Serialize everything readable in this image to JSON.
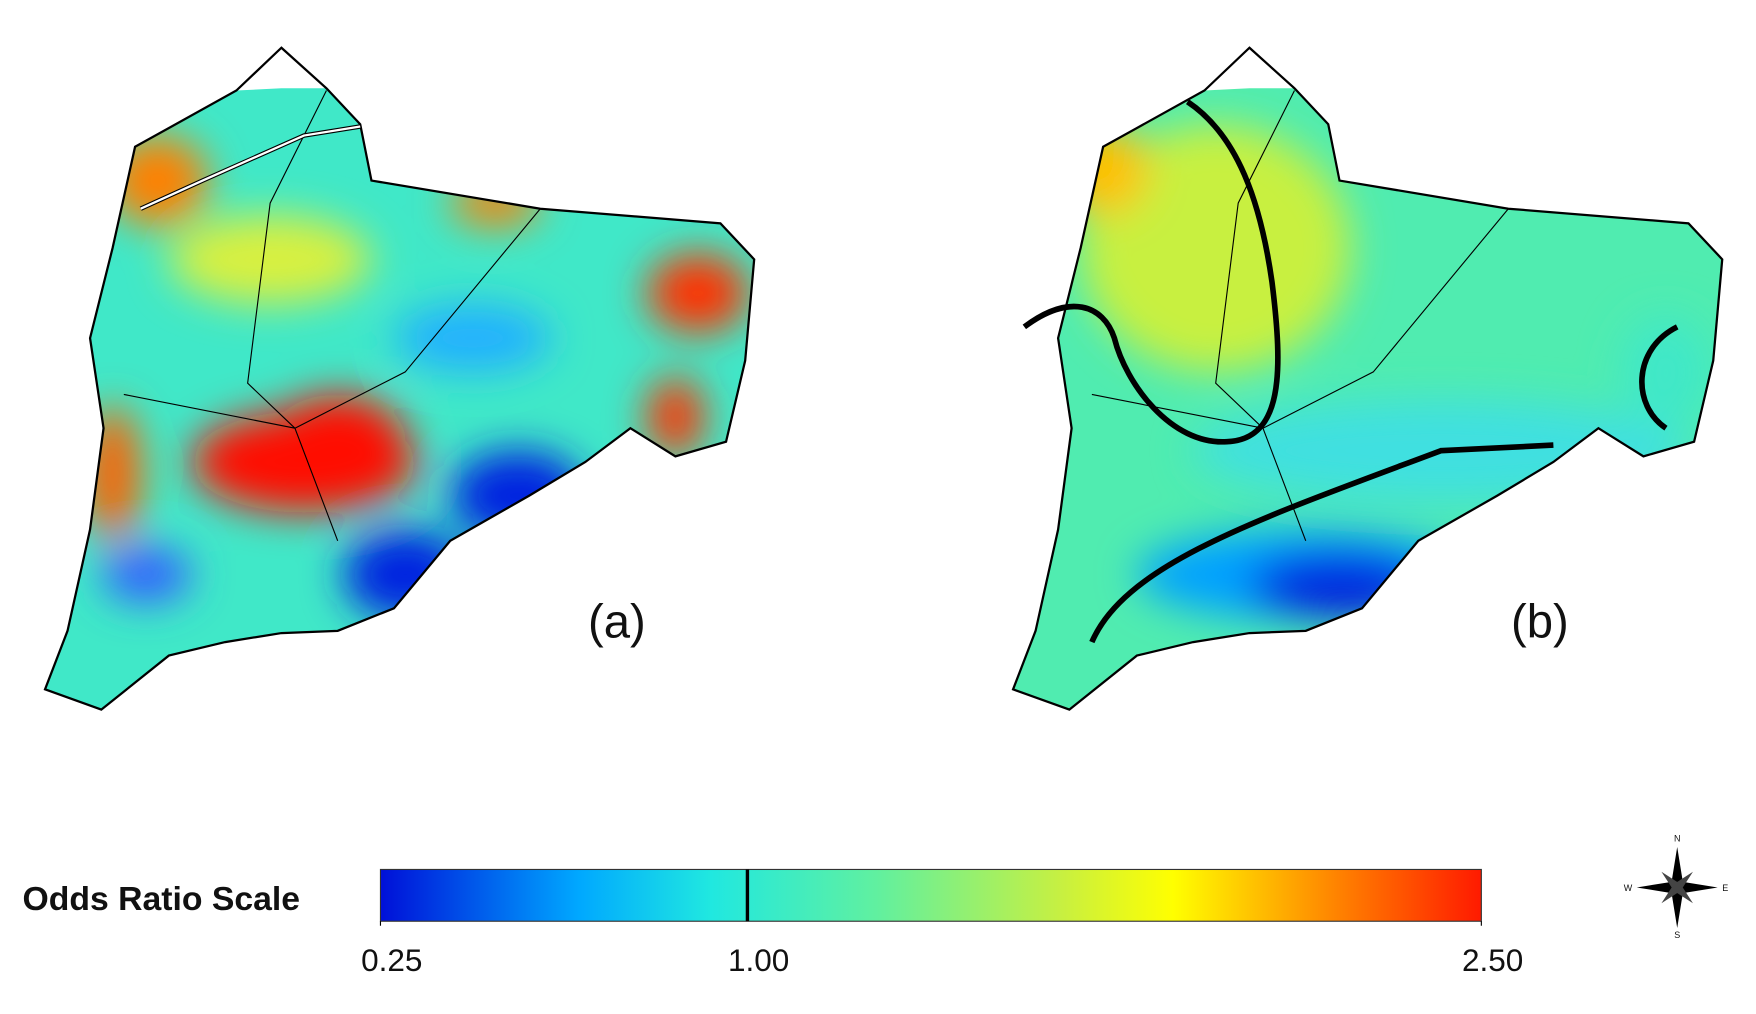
{
  "panels": [
    {
      "label": "(a)"
    },
    {
      "label": "(b)"
    }
  ],
  "legend": {
    "title": "Odds Ratio Scale",
    "lim": [
      0.25,
      2.5
    ],
    "ticks": [
      0.25,
      {
        "value": 1,
        "label": "1.00"
      },
      {
        "value": 2.5,
        "label": "2.50"
      }
    ]
  },
  "compass": {
    "north": "N",
    "west": "W",
    "east": "E",
    "south": "S"
  }
}
